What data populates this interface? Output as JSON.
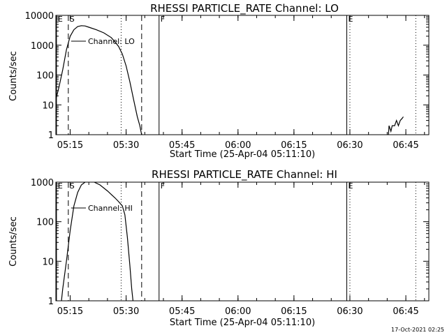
{
  "chart_data": [
    {
      "type": "line",
      "title": "RHESSI PARTICLE_RATE Channel: LO",
      "ylabel": "Counts/sec",
      "xlabel": "Start Time (25-Apr-04 05:11:10)",
      "yscale": "log",
      "ylim": [
        1,
        10000
      ],
      "yticks": [
        "1",
        "10",
        "100",
        "1000",
        "10000"
      ],
      "xlim": [
        "05:11:10",
        "06:51:10"
      ],
      "xticks": [
        "05:15",
        "05:30",
        "05:45",
        "06:00",
        "06:15",
        "06:30",
        "06:45"
      ],
      "curve_label": "Channel: LO",
      "markers": [
        {
          "time": "05:11:20",
          "label": "E",
          "style": "solid"
        },
        {
          "time": "05:14:30",
          "label": "S",
          "style": "dashed"
        },
        {
          "time": "05:28:40",
          "label": "",
          "style": "dotted"
        },
        {
          "time": "05:34:10",
          "label": "",
          "style": "dashed"
        },
        {
          "time": "05:38:50",
          "label": "F",
          "style": "solid"
        },
        {
          "time": "06:29:10",
          "label": "E",
          "style": "solid"
        },
        {
          "time": "06:30:00",
          "label": "",
          "style": "dotted"
        },
        {
          "time": "06:47:40",
          "label": "",
          "style": "dotted"
        }
      ],
      "series": [
        {
          "points": [
            [
              "05:11:10",
              15
            ],
            [
              "05:12:00",
              40
            ],
            [
              "05:13:00",
              150
            ],
            [
              "05:14:00",
              700
            ],
            [
              "05:15:00",
              2000
            ],
            [
              "05:16:00",
              3300
            ],
            [
              "05:17:00",
              4200
            ],
            [
              "05:18:00",
              4500
            ],
            [
              "05:19:00",
              4400
            ],
            [
              "05:20:00",
              4000
            ],
            [
              "05:22:00",
              3300
            ],
            [
              "05:24:00",
              2600
            ],
            [
              "05:26:00",
              1800
            ],
            [
              "05:27:00",
              1300
            ],
            [
              "05:28:00",
              900
            ],
            [
              "05:29:00",
              500
            ],
            [
              "05:30:00",
              200
            ],
            [
              "05:31:00",
              60
            ],
            [
              "05:32:00",
              15
            ],
            [
              "05:33:00",
              4
            ],
            [
              "05:33:40",
              2
            ],
            [
              "05:34:10",
              1
            ]
          ]
        },
        {
          "points": [
            [
              "06:40:20",
              1
            ],
            [
              "06:40:30",
              2
            ],
            [
              "06:41:00",
              1.3
            ],
            [
              "06:41:20",
              2
            ],
            [
              "06:42:00",
              2
            ],
            [
              "06:42:30",
              3
            ],
            [
              "06:43:00",
              2
            ],
            [
              "06:43:30",
              3
            ],
            [
              "06:44:00",
              3.5
            ],
            [
              "06:44:20",
              4
            ]
          ]
        }
      ]
    },
    {
      "type": "line",
      "title": "RHESSI PARTICLE_RATE Channel: HI",
      "ylabel": "Counts/sec",
      "xlabel": "Start Time (25-Apr-04 05:11:10)",
      "yscale": "log",
      "ylim": [
        1,
        1000
      ],
      "yticks": [
        "1",
        "10",
        "100",
        "1000"
      ],
      "xlim": [
        "05:11:10",
        "06:51:10"
      ],
      "xticks": [
        "05:15",
        "05:30",
        "05:45",
        "06:00",
        "06:15",
        "06:30",
        "06:45"
      ],
      "curve_label": "Channel: HI",
      "markers": [
        {
          "time": "05:11:20",
          "label": "E",
          "style": "solid"
        },
        {
          "time": "05:14:30",
          "label": "S",
          "style": "dashed"
        },
        {
          "time": "05:28:40",
          "label": "",
          "style": "dotted"
        },
        {
          "time": "05:34:10",
          "label": "",
          "style": "dashed"
        },
        {
          "time": "05:38:50",
          "label": "F",
          "style": "solid"
        },
        {
          "time": "06:29:10",
          "label": "E",
          "style": "solid"
        },
        {
          "time": "06:30:00",
          "label": "",
          "style": "dotted"
        },
        {
          "time": "06:47:40",
          "label": "",
          "style": "dotted"
        }
      ],
      "series": [
        {
          "points": [
            [
              "05:12:40",
              1
            ],
            [
              "05:13:00",
              2
            ],
            [
              "05:14:00",
              10
            ],
            [
              "05:15:00",
              60
            ],
            [
              "05:16:00",
              250
            ],
            [
              "05:17:00",
              550
            ],
            [
              "05:18:00",
              850
            ],
            [
              "05:19:00",
              1000
            ],
            [
              "05:20:00",
              1100
            ],
            [
              "05:21:00",
              1050
            ],
            [
              "05:23:00",
              850
            ],
            [
              "05:25:00",
              600
            ],
            [
              "05:27:00",
              400
            ],
            [
              "05:28:00",
              320
            ],
            [
              "05:29:00",
              250
            ],
            [
              "05:29:40",
              150
            ],
            [
              "05:30:20",
              40
            ],
            [
              "05:31:00",
              8
            ],
            [
              "05:31:30",
              2
            ],
            [
              "05:31:50",
              1
            ]
          ]
        }
      ]
    }
  ],
  "footer": {
    "timestamp": "17-Oct-2021 02:25"
  }
}
